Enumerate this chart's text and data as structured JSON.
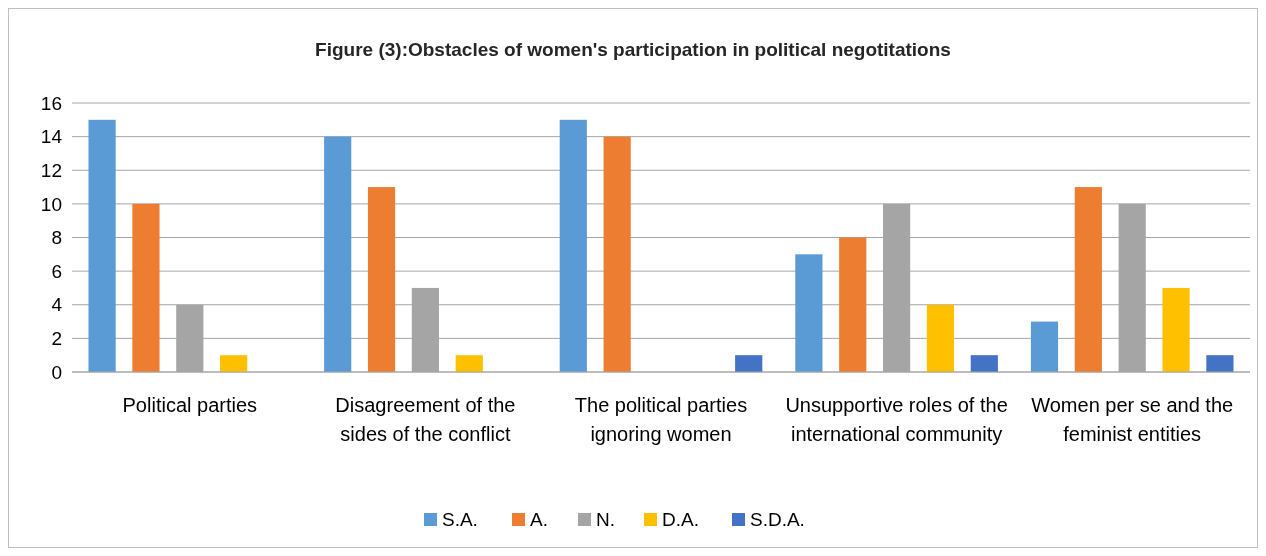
{
  "chart_data": {
    "type": "bar",
    "title": "Figure (3):Obstacles of women's participation in political negotitations",
    "categories": [
      "Political parties",
      "Disagreement of the sides of the conflict",
      "The political parties ignoring women",
      "Unsupportive roles of the international community",
      "Women per se and the feminist entities"
    ],
    "series": [
      {
        "name": "S.A.",
        "color": "#5b9bd5",
        "values": [
          15,
          14,
          15,
          7,
          3
        ]
      },
      {
        "name": "A.",
        "color": "#ed7d31",
        "values": [
          10,
          11,
          14,
          8,
          11
        ]
      },
      {
        "name": "N.",
        "color": "#a5a5a5",
        "values": [
          4,
          5,
          0,
          10,
          10
        ]
      },
      {
        "name": "D.A.",
        "color": "#ffc000",
        "values": [
          1,
          1,
          0,
          4,
          5
        ]
      },
      {
        "name": "S.D.A.",
        "color": "#4472c4",
        "values": [
          0,
          0,
          1,
          1,
          1
        ]
      }
    ],
    "ylim": [
      0,
      16
    ],
    "yticks": [
      0,
      2,
      4,
      6,
      8,
      10,
      12,
      14,
      16
    ],
    "grid": "y",
    "legend": "bottom"
  }
}
